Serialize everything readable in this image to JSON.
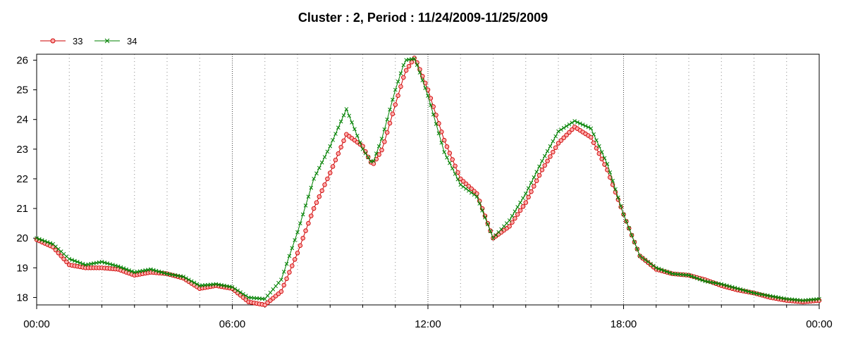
{
  "chart_data": {
    "type": "line",
    "title": "Cluster : 2, Period : 11/24/2009-11/25/2009",
    "xlabel": "",
    "ylabel": "",
    "x_unit": "hours",
    "xlim": [
      0,
      24
    ],
    "ylim": [
      17.75,
      26.2
    ],
    "x_ticks": [
      {
        "value": 0,
        "label": "00:00"
      },
      {
        "value": 6,
        "label": "06:00"
      },
      {
        "value": 12,
        "label": "12:00"
      },
      {
        "value": 18,
        "label": "18:00"
      },
      {
        "value": 24,
        "label": "00:00"
      }
    ],
    "y_ticks": [
      18,
      19,
      20,
      21,
      22,
      23,
      24,
      25,
      26
    ],
    "grid": "dotted vertical lines every hour",
    "legend_position": "top-left",
    "series": [
      {
        "name": "33",
        "color": "#cc0000",
        "fill": "#ffaaaa",
        "marker": "circle",
        "points": [
          [
            0.0,
            19.95
          ],
          [
            0.5,
            19.7
          ],
          [
            1.0,
            19.1
          ],
          [
            1.5,
            19.0
          ],
          [
            2.0,
            19.0
          ],
          [
            2.5,
            18.95
          ],
          [
            3.0,
            18.75
          ],
          [
            3.5,
            18.85
          ],
          [
            4.0,
            18.8
          ],
          [
            4.5,
            18.65
          ],
          [
            5.0,
            18.3
          ],
          [
            5.5,
            18.4
          ],
          [
            6.0,
            18.3
          ],
          [
            6.5,
            17.85
          ],
          [
            7.0,
            17.75
          ],
          [
            7.5,
            18.2
          ],
          [
            8.0,
            19.5
          ],
          [
            8.5,
            21.0
          ],
          [
            9.0,
            22.2
          ],
          [
            9.5,
            23.5
          ],
          [
            10.0,
            23.1
          ],
          [
            10.3,
            22.45
          ],
          [
            10.6,
            23.0
          ],
          [
            11.0,
            24.5
          ],
          [
            11.3,
            25.6
          ],
          [
            11.6,
            26.1
          ],
          [
            12.0,
            25.0
          ],
          [
            12.5,
            23.3
          ],
          [
            13.0,
            22.0
          ],
          [
            13.5,
            21.5
          ],
          [
            14.0,
            20.0
          ],
          [
            14.5,
            20.4
          ],
          [
            15.0,
            21.2
          ],
          [
            15.5,
            22.3
          ],
          [
            16.0,
            23.2
          ],
          [
            16.5,
            23.75
          ],
          [
            17.0,
            23.4
          ],
          [
            17.5,
            22.3
          ],
          [
            18.0,
            20.8
          ],
          [
            18.5,
            19.4
          ],
          [
            19.0,
            18.95
          ],
          [
            19.5,
            18.8
          ],
          [
            20.0,
            18.75
          ],
          [
            20.5,
            18.6
          ],
          [
            21.0,
            18.4
          ],
          [
            21.5,
            18.25
          ],
          [
            22.0,
            18.15
          ],
          [
            22.5,
            18.0
          ],
          [
            23.0,
            17.9
          ],
          [
            23.5,
            17.85
          ],
          [
            24.0,
            17.9
          ]
        ]
      },
      {
        "name": "34",
        "color": "#008000",
        "fill": "#008000",
        "marker": "x",
        "points": [
          [
            0.0,
            20.0
          ],
          [
            0.5,
            19.8
          ],
          [
            1.0,
            19.3
          ],
          [
            1.5,
            19.1
          ],
          [
            2.0,
            19.2
          ],
          [
            2.5,
            19.05
          ],
          [
            3.0,
            18.85
          ],
          [
            3.5,
            18.95
          ],
          [
            4.0,
            18.8
          ],
          [
            4.5,
            18.7
          ],
          [
            5.0,
            18.4
          ],
          [
            5.5,
            18.45
          ],
          [
            6.0,
            18.35
          ],
          [
            6.5,
            18.0
          ],
          [
            7.0,
            17.95
          ],
          [
            7.5,
            18.6
          ],
          [
            8.0,
            20.2
          ],
          [
            8.5,
            22.0
          ],
          [
            9.0,
            23.1
          ],
          [
            9.5,
            24.35
          ],
          [
            10.0,
            23.0
          ],
          [
            10.3,
            22.5
          ],
          [
            10.6,
            23.4
          ],
          [
            11.0,
            25.0
          ],
          [
            11.3,
            26.0
          ],
          [
            11.6,
            26.05
          ],
          [
            12.0,
            24.8
          ],
          [
            12.5,
            22.9
          ],
          [
            13.0,
            21.8
          ],
          [
            13.5,
            21.4
          ],
          [
            14.0,
            20.0
          ],
          [
            14.5,
            20.6
          ],
          [
            15.0,
            21.5
          ],
          [
            15.5,
            22.6
          ],
          [
            16.0,
            23.6
          ],
          [
            16.5,
            23.95
          ],
          [
            17.0,
            23.7
          ],
          [
            17.5,
            22.5
          ],
          [
            18.0,
            20.8
          ],
          [
            18.5,
            19.4
          ],
          [
            19.0,
            19.0
          ],
          [
            19.5,
            18.8
          ],
          [
            20.0,
            18.75
          ],
          [
            20.5,
            18.55
          ],
          [
            21.0,
            18.45
          ],
          [
            21.5,
            18.3
          ],
          [
            22.0,
            18.15
          ],
          [
            22.5,
            18.05
          ],
          [
            23.0,
            17.95
          ],
          [
            23.5,
            17.9
          ],
          [
            24.0,
            17.95
          ]
        ]
      }
    ]
  }
}
